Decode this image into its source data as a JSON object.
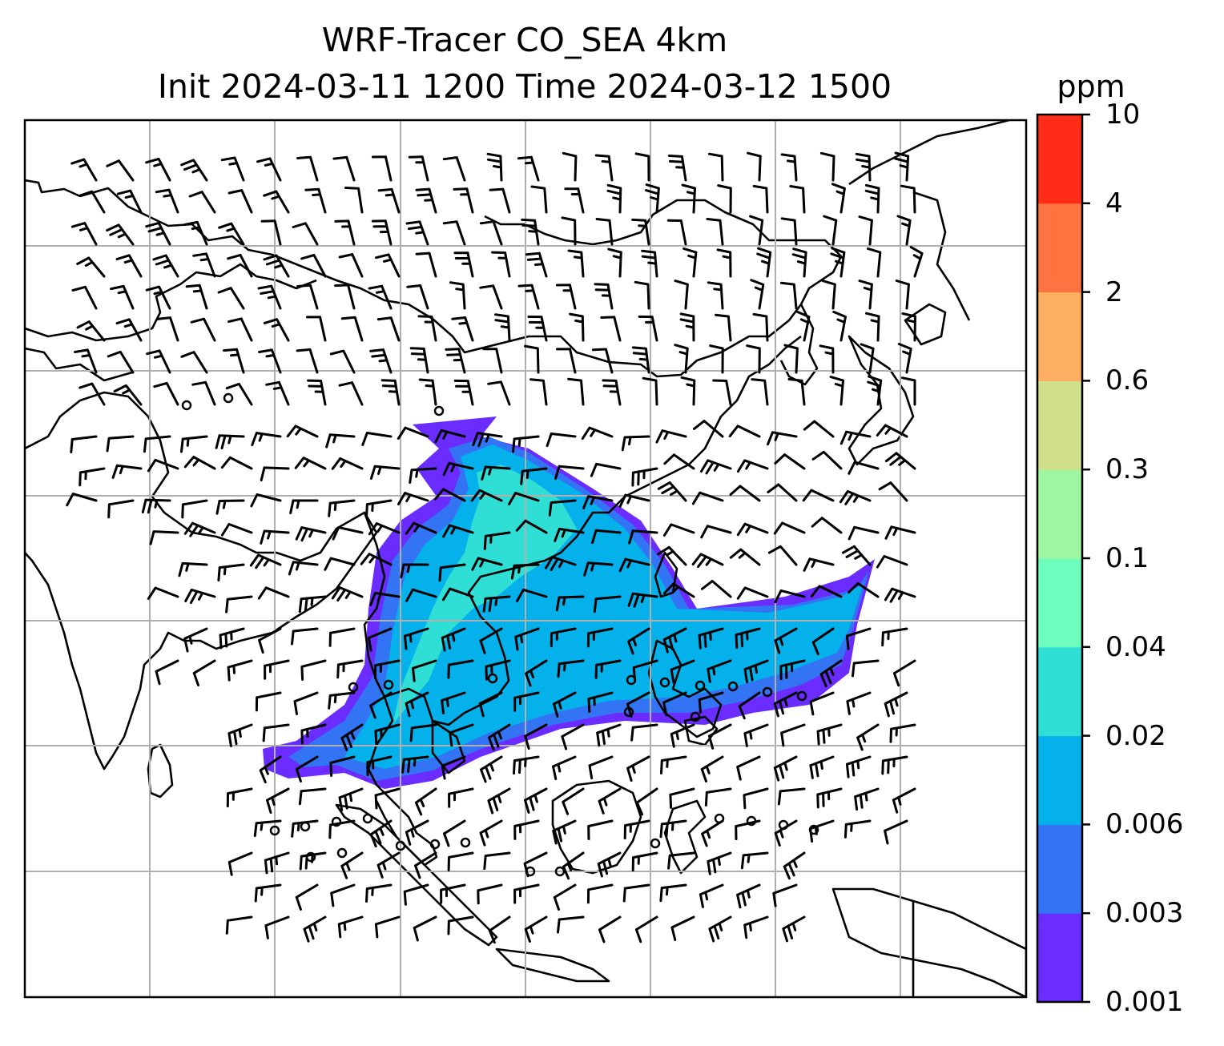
{
  "title_line1": "WRF-Tracer CO_SEA 4km",
  "title_line2": "Init 2024-03-11 1200 Time 2024-03-12 1500",
  "colorbar": {
    "unit": "ppm",
    "levels": [
      "0.001",
      "0.003",
      "0.006",
      "0.02",
      "0.04",
      "0.1",
      "0.3",
      "0.6",
      "2",
      "4",
      "10"
    ],
    "colors": [
      "#6a2cff",
      "#3274f3",
      "#05b1ea",
      "#2fdfd6",
      "#6dfdbd",
      "#9cf7a0",
      "#d0e08a",
      "#feae61",
      "#fe7340",
      "#ff2d18"
    ]
  },
  "map": {
    "gridlines": true,
    "coastlines": true,
    "tracer_plume_colors": {
      "outer": "#6a2cff",
      "edge": "#3274f3",
      "body": "#05b1ea",
      "core": "#2fdfd6"
    },
    "wind_barbs": true
  }
}
